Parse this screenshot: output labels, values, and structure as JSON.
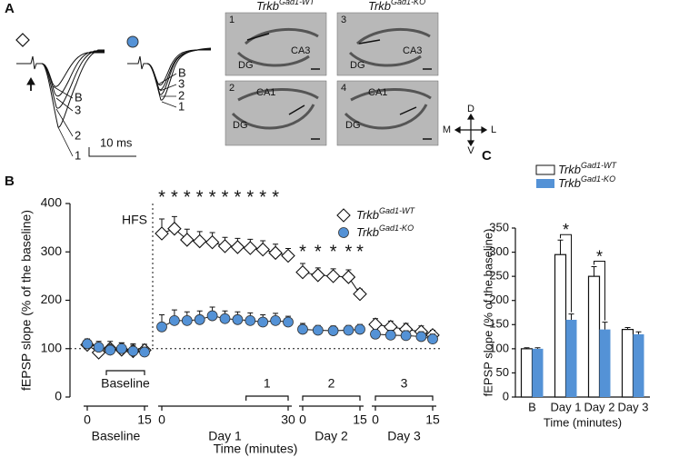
{
  "panel_a": {
    "panel": "A",
    "trace_labels_wt": [
      "B",
      "3",
      "2",
      "1"
    ],
    "trace_labels_ko": [
      "B",
      "3",
      "2",
      "1"
    ],
    "scale": "10 ms",
    "columns": [
      [
        "Trkb",
        "Gad1-WT"
      ],
      [
        "Trkb",
        "Gad1-KO"
      ]
    ],
    "images": [
      {
        "number": "1",
        "regions": [
          "DG",
          "CA3"
        ]
      },
      {
        "number": "2",
        "regions": [
          "CA1",
          "DG"
        ]
      },
      {
        "number": "3",
        "regions": [
          "DG",
          "CA3"
        ]
      },
      {
        "number": "4",
        "regions": [
          "CA1",
          "DG"
        ]
      }
    ],
    "compass": {
      "up": "D",
      "down": "V",
      "left": "M",
      "right": "L"
    }
  },
  "chart_data": [
    {
      "type": "line",
      "panel": "B",
      "ylabel": "fEPSP slope (% of the baseline)",
      "xlabel": "Time (minutes)",
      "annotation": "HFS",
      "ylim": [
        0,
        400
      ],
      "yticks": [
        0,
        100,
        200,
        300,
        400
      ],
      "baseline": 100,
      "segments": [
        {
          "label": "Baseline",
          "xlim": [
            0,
            15
          ],
          "xticks": [
            0,
            15
          ],
          "x": [
            0,
            3,
            6,
            9,
            12,
            15
          ],
          "period": {
            "label": "Baseline",
            "from": 5,
            "to": 15
          }
        },
        {
          "label": "Day 1",
          "xlim": [
            0,
            30
          ],
          "xticks": [
            0,
            30
          ],
          "x": [
            0,
            3,
            6,
            9,
            12,
            15,
            18,
            21,
            24,
            27,
            30
          ],
          "value_labels": [
            "*",
            "*",
            "*",
            "*",
            "*",
            "*",
            "*",
            "*",
            "*",
            "*",
            null
          ],
          "period": {
            "label": "1",
            "from": 20,
            "to": 30
          }
        },
        {
          "label": "Day 2",
          "xlim": [
            0,
            15
          ],
          "xticks": [
            0,
            15
          ],
          "x": [
            0,
            4,
            8,
            12,
            15
          ],
          "value_labels": [
            "*",
            "*",
            "*",
            "*",
            "*"
          ],
          "period": {
            "label": "2",
            "from": 0,
            "to": 15
          }
        },
        {
          "label": "Day 3",
          "xlim": [
            0,
            15
          ],
          "xticks": [
            0,
            15
          ],
          "x": [
            0,
            4,
            8,
            12,
            15
          ],
          "period": {
            "label": "3",
            "from": 0,
            "to": 15
          }
        }
      ],
      "series": [
        {
          "name": [
            "Trkb",
            "Gad1-WT"
          ],
          "color": "#ffffff",
          "marker": "diamond",
          "segments": [
            {
              "values": [
                108,
                92,
                100,
                98,
                95,
                97
              ],
              "errors": [
                12,
                12,
                15,
                14,
                15,
                12
              ]
            },
            {
              "values": [
                338,
                348,
                325,
                322,
                320,
                312,
                310,
                308,
                305,
                298,
                292
              ],
              "errors": [
                30,
                25,
                22,
                20,
                20,
                18,
                18,
                18,
                18,
                18,
                15
              ]
            },
            {
              "values": [
                258,
                252,
                250,
                248,
                213
              ],
              "errors": [
                18,
                15,
                15,
                15,
                10
              ]
            },
            {
              "values": [
                150,
                145,
                140,
                135,
                128
              ],
              "errors": [
                12,
                12,
                12,
                12,
                10
              ]
            }
          ]
        },
        {
          "name": [
            "Trkb",
            "Gad1-KO"
          ],
          "color": "#5492d6",
          "marker": "circle",
          "segments": [
            {
              "values": [
                110,
                103,
                97,
                100,
                95,
                93
              ],
              "errors": [
                10,
                12,
                12,
                12,
                12,
                10
              ]
            },
            {
              "values": [
                145,
                158,
                158,
                160,
                168,
                162,
                160,
                158,
                155,
                158,
                155
              ],
              "errors": [
                25,
                22,
                18,
                18,
                18,
                16,
                16,
                16,
                15,
                15,
                12
              ]
            },
            {
              "values": [
                140,
                138,
                137,
                138,
                140
              ],
              "errors": [
                12,
                10,
                10,
                10,
                10
              ]
            },
            {
              "values": [
                130,
                128,
                127,
                125,
                120
              ],
              "errors": [
                10,
                10,
                10,
                10,
                10
              ]
            }
          ]
        }
      ]
    },
    {
      "type": "bar",
      "panel": "C",
      "ylabel": "fEPSP slope (% of the baseline)",
      "xlabel": "Time (minutes)",
      "categories": [
        "B",
        "Day 1",
        "Day 2",
        "Day 3"
      ],
      "ylim": [
        0,
        350
      ],
      "yticks": [
        0,
        50,
        100,
        150,
        200,
        250,
        300,
        350
      ],
      "series": [
        {
          "name": [
            "Trkb",
            "Gad1-WT"
          ],
          "color": "#ffffff",
          "values": [
            100,
            295,
            250,
            140
          ],
          "errors": [
            2,
            30,
            20,
            4
          ]
        },
        {
          "name": [
            "Trkb",
            "Gad1-KO"
          ],
          "color": "#5492d6",
          "values": [
            100,
            160,
            140,
            130
          ],
          "errors": [
            2,
            12,
            15,
            5
          ]
        }
      ],
      "value_labels": [
        null,
        "*",
        "*",
        null
      ]
    }
  ]
}
